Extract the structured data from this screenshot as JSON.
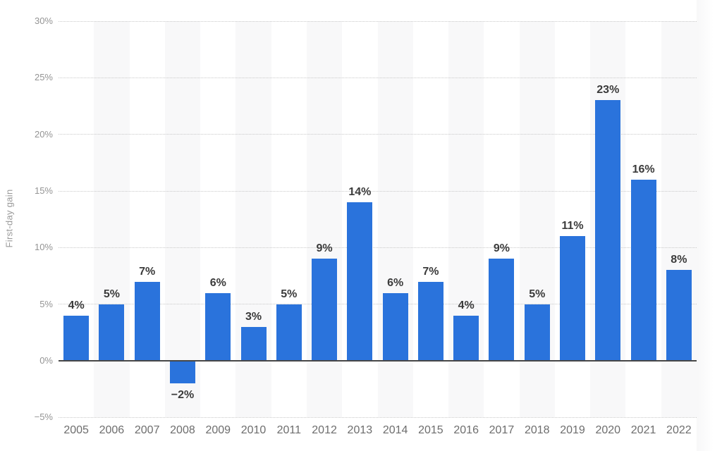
{
  "chart_data": {
    "type": "bar",
    "title": "",
    "xlabel": "",
    "ylabel": "First-day gain",
    "categories": [
      "2005",
      "2006",
      "2007",
      "2008",
      "2009",
      "2010",
      "2011",
      "2012",
      "2013",
      "2014",
      "2015",
      "2016",
      "2017",
      "2018",
      "2019",
      "2020",
      "2021",
      "2022"
    ],
    "values": [
      4,
      5,
      7,
      -2,
      6,
      3,
      5,
      9,
      14,
      6,
      7,
      4,
      9,
      5,
      11,
      23,
      16,
      8
    ],
    "value_labels": [
      "4%",
      "5%",
      "7%",
      "−2%",
      "6%",
      "3%",
      "5%",
      "9%",
      "14%",
      "6%",
      "7%",
      "4%",
      "9%",
      "5%",
      "11%",
      "23%",
      "16%",
      "8%"
    ],
    "yticks": [
      {
        "value": 30,
        "label": "30%"
      },
      {
        "value": 25,
        "label": "25%"
      },
      {
        "value": 20,
        "label": "20%"
      },
      {
        "value": 15,
        "label": "15%"
      },
      {
        "value": 10,
        "label": "10%"
      },
      {
        "value": 5,
        "label": "5%"
      },
      {
        "value": 0,
        "label": "0%"
      },
      {
        "value": -5,
        "label": "−5%"
      }
    ],
    "ylim": [
      -5,
      30
    ],
    "grid": "horizontal-dotted",
    "legend": "none",
    "striped_columns": "alternate vertical bands behind even years (2006, 2008, ... 2022)",
    "colors": {
      "bar": "#2a73dc",
      "column_stripe": "#f8f8f9",
      "gridline": "#c9c9c9",
      "zero_line": "#474747",
      "y_tick_label": "#949494",
      "x_tick_label": "#6d6d6d",
      "value_label": "#3b3b3b",
      "axis_title": "#9a9a9a",
      "background": "#ffffff"
    }
  }
}
